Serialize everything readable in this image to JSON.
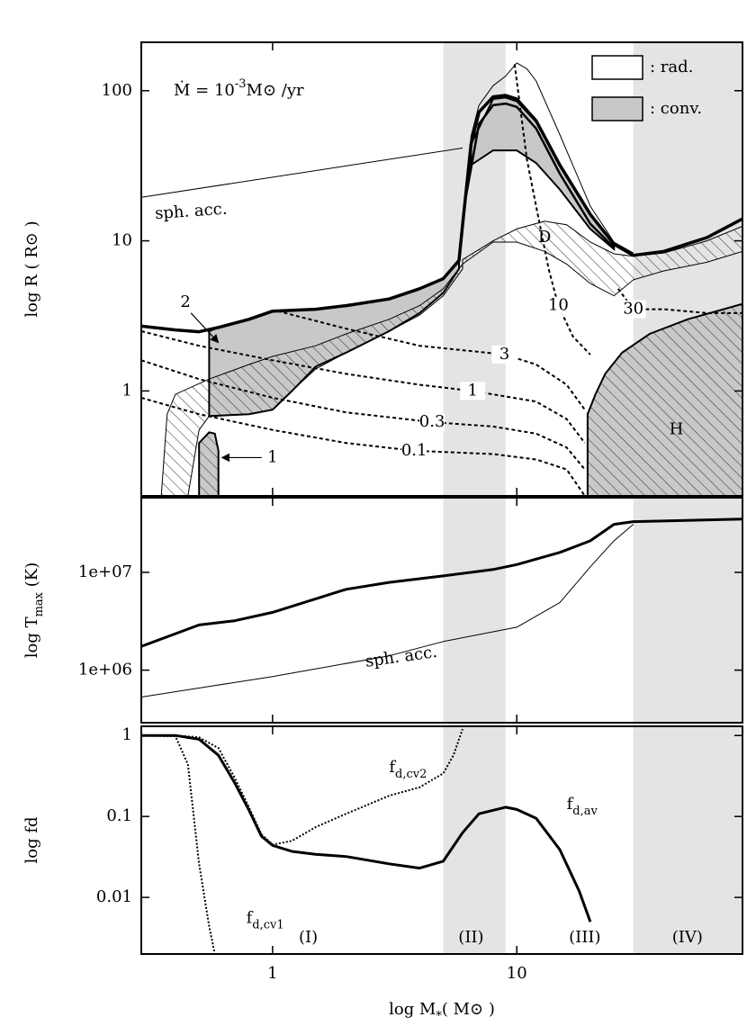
{
  "chart_data": [
    {
      "type": "line",
      "formula": {
        "lhs": "Ṁ = 10",
        "exp": "-3",
        "rhs": "M⊙ /yr"
      },
      "ylabel": "log R ( R⊙ )",
      "xlim": [
        0.29,
        84
      ],
      "xticks": [
        1,
        10
      ],
      "log_x": true,
      "ylim": [
        0.2,
        210
      ],
      "yticks": [
        1,
        10,
        100
      ],
      "log_y": true,
      "bands": [
        [
          5,
          9
        ],
        [
          30,
          84
        ]
      ],
      "band_color": "#e4e4e4",
      "legend": [
        {
          "label": ": rad.",
          "fill": "#ffffff"
        },
        {
          "label": ": conv.",
          "fill": "#c8c8c8"
        }
      ],
      "series": [
        {
          "x": [
            0.29,
            0.4,
            0.5,
            0.6,
            0.8,
            1,
            1.5,
            2,
            3,
            4,
            5,
            5.8,
            6,
            6.5,
            7,
            8,
            9,
            10,
            12,
            15,
            20,
            25,
            30,
            40,
            60,
            84
          ],
          "values": [
            2.7,
            2.55,
            2.48,
            2.65,
            3.0,
            3.4,
            3.5,
            3.7,
            4.1,
            4.8,
            5.6,
            7.4,
            12.8,
            44,
            72,
            91,
            93,
            88,
            63,
            32,
            15,
            9.5,
            8,
            8.5,
            10.5,
            14
          ],
          "color": "#000000",
          "width": 3.5
        },
        {
          "x": [
            6,
            6.5,
            7,
            8,
            9,
            10,
            11,
            12,
            15,
            20,
            25,
            30
          ],
          "values": [
            12.8,
            50,
            80,
            108,
            125,
            153,
            140,
            116,
            51,
            17,
            9.8,
            8.3
          ],
          "color": "#000000",
          "width": 1
        },
        {
          "x": [
            6.2,
            7,
            8,
            9,
            10,
            12,
            15,
            20,
            25
          ],
          "values": [
            20,
            60,
            80,
            82,
            78,
            56,
            28,
            13,
            9
          ],
          "color": "#000000",
          "width": 2.5
        },
        {
          "label": "sph. acc.",
          "x": [
            0.29,
            6
          ],
          "values": [
            19.5,
            41.5
          ],
          "color": "#000000",
          "width": 1
        }
      ],
      "regions": [
        {
          "x": [
            6.5,
            8,
            9,
            10,
            12,
            15,
            20,
            25,
            25,
            20,
            15,
            12,
            10,
            8,
            6.5
          ],
          "y": [
            44,
            88,
            90,
            85,
            62,
            32,
            15,
            9.5,
            8.8,
            12,
            22,
            33,
            40,
            40,
            32
          ],
          "fill": "#c8c8c8",
          "hatch": false,
          "stroke_width": 2
        },
        {
          "x": [
            0.55,
            0.6,
            0.8,
            1,
            1.5,
            2,
            3,
            4,
            5,
            5.8,
            5.8,
            5,
            4,
            3,
            2,
            1.5,
            1.2,
            1,
            0.8,
            0.55
          ],
          "y": [
            2.5,
            2.65,
            3.0,
            3.4,
            3.5,
            3.7,
            4.1,
            4.8,
            5.6,
            7.4,
            6.5,
            4.5,
            3.3,
            2.5,
            1.8,
            1.45,
            1.0,
            0.75,
            0.7,
            0.68
          ],
          "fill": "#c8c8c8",
          "hatch": false,
          "stroke_width": 2
        },
        {
          "x": [
            0.35,
            0.37,
            0.4,
            0.55,
            0.8,
            1,
            1.5,
            2,
            3,
            4,
            5,
            6,
            6,
            5,
            4,
            3,
            2,
            1.5,
            1.2,
            1,
            0.8,
            0.6,
            0.55,
            0.5,
            0.45
          ],
          "y": [
            0.2,
            0.7,
            0.95,
            1.2,
            1.5,
            1.7,
            2.0,
            2.4,
            3.0,
            3.7,
            4.8,
            7,
            6.5,
            4.3,
            3.2,
            2.5,
            1.8,
            1.4,
            1.0,
            0.75,
            0.7,
            0.68,
            0.68,
            0.55,
            0.2
          ],
          "fill": "none",
          "hatch": true,
          "stroke_width": 1
        },
        {
          "x": [
            6,
            8,
            10,
            13,
            16,
            20,
            25,
            30,
            40,
            60,
            84,
            84,
            60,
            40,
            30,
            25,
            20,
            16,
            13,
            10,
            8,
            6
          ],
          "y": [
            7.5,
            10,
            12,
            13.5,
            12.8,
            9.8,
            8.2,
            7.9,
            8.3,
            10,
            12.5,
            8.5,
            7.2,
            6.3,
            5.5,
            4.3,
            5.2,
            7,
            8.5,
            9.8,
            9.8,
            7
          ],
          "fill": "none",
          "hatch": true,
          "stroke_width": 1
        },
        {
          "x": [
            19.5,
            19.5,
            21,
            23,
            27,
            35,
            50,
            84,
            84
          ],
          "y": [
            0.2,
            0.7,
            0.95,
            1.3,
            1.8,
            2.4,
            3.0,
            3.8,
            0.2
          ],
          "fill": "#c8c8c8",
          "hatch": true,
          "stroke_width": 2
        },
        {
          "x": [
            0.5,
            0.5,
            0.55,
            0.58,
            0.6,
            0.6
          ],
          "y": [
            0.2,
            0.45,
            0.53,
            0.52,
            0.4,
            0.2
          ],
          "fill": "#c8c8c8",
          "hatch": true,
          "stroke_width": 2
        }
      ],
      "contours": [
        {
          "label": "0.1",
          "x": [
            0.29,
            0.5,
            1,
            2,
            3.8,
            8,
            12,
            16,
            19
          ],
          "values": [
            0.9,
            0.7,
            0.55,
            0.45,
            0.4,
            0.38,
            0.35,
            0.3,
            0.2
          ]
        },
        {
          "label": "0.3",
          "x": [
            0.29,
            0.5,
            1,
            2,
            4.5,
            8,
            12,
            16,
            19
          ],
          "values": [
            1.6,
            1.2,
            0.9,
            0.72,
            0.62,
            0.58,
            0.52,
            0.42,
            0.3
          ]
        },
        {
          "label": "1",
          "x": [
            0.29,
            0.5,
            1,
            2,
            4,
            6.6,
            12,
            16,
            19
          ],
          "values": [
            2.5,
            2.0,
            1.6,
            1.3,
            1.1,
            1.0,
            0.85,
            0.65,
            0.45
          ]
        },
        {
          "label": "3",
          "x": [
            1.05,
            2,
            4,
            8.9,
            12,
            16,
            19
          ],
          "values": [
            3.4,
            2.6,
            2.0,
            1.75,
            1.5,
            1.1,
            0.75
          ]
        },
        {
          "label": "10",
          "x": [
            9.8,
            10.3,
            11,
            12,
            13.5,
            14.8,
            17,
            20
          ],
          "values": [
            150,
            80,
            35,
            17,
            6.5,
            3.7,
            2.3,
            1.75
          ]
        },
        {
          "label": "30",
          "x": [
            26,
            30,
            40,
            60,
            84
          ],
          "values": [
            4.8,
            3.5,
            3.5,
            3.3,
            3.3
          ]
        }
      ],
      "annotations": [
        "D",
        "H",
        "2",
        "1"
      ]
    },
    {
      "type": "line",
      "ylabel": {
        "text": "log T",
        "sub": "max",
        "tail": " (K)"
      },
      "xlim": [
        0.29,
        84
      ],
      "xticks": [
        1,
        10
      ],
      "log_x": true,
      "ylim": [
        290000,
        58000000
      ],
      "yticks": [
        {
          "value": 1000000,
          "label": "1e+06"
        },
        {
          "value": 10000000,
          "label": "1e+07"
        }
      ],
      "log_y": true,
      "bands": [
        [
          5,
          9
        ],
        [
          30,
          84
        ]
      ],
      "band_color": "#e4e4e4",
      "series": [
        {
          "x": [
            0.29,
            0.5,
            0.7,
            1,
            2,
            3,
            5,
            8,
            10,
            15,
            20,
            25,
            30,
            84
          ],
          "values": [
            1750000,
            2900000,
            3200000,
            3900000,
            6700000,
            7900000,
            9200000,
            10700000,
            12000000,
            16000000,
            21000000,
            31000000,
            33000000,
            35000000
          ],
          "color": "#000000",
          "width": 3
        },
        {
          "label": "sph. acc.",
          "x": [
            0.29,
            1,
            3,
            5,
            10,
            15,
            20,
            25,
            30
          ],
          "values": [
            530000,
            860000,
            1400000,
            1960000,
            2750000,
            4900000,
            11400000,
            21000000,
            31000000
          ],
          "color": "#000000",
          "width": 1
        }
      ]
    },
    {
      "type": "line",
      "ylabel": "log fd",
      "xlabel": {
        "text": "log M",
        "sub": "*",
        "tail": "( M⊙ )"
      },
      "xlim": [
        0.29,
        84
      ],
      "xticks": [
        1,
        10
      ],
      "log_x": true,
      "ylim": [
        0.002,
        1.3
      ],
      "yticks": [
        0.01,
        0.1,
        1
      ],
      "log_y": true,
      "bands": [
        [
          5,
          9
        ],
        [
          30,
          84
        ]
      ],
      "band_color": "#e4e4e4",
      "phase_labels": [
        "(I)",
        "(II)",
        "(III)",
        "(IV)"
      ],
      "series": [
        {
          "label": {
            "text": "f",
            "sub": "d,av"
          },
          "x": [
            0.29,
            0.4,
            0.5,
            0.6,
            0.7,
            0.8,
            0.9,
            1,
            1.2,
            1.5,
            2,
            3,
            4,
            5,
            6,
            7,
            9,
            10,
            12,
            15,
            18,
            20
          ],
          "values": [
            1,
            1,
            0.9,
            0.57,
            0.26,
            0.12,
            0.057,
            0.044,
            0.037,
            0.034,
            0.032,
            0.026,
            0.023,
            0.028,
            0.063,
            0.108,
            0.13,
            0.122,
            0.095,
            0.039,
            0.012,
            0.005
          ],
          "color": "#000000",
          "width": 3
        },
        {
          "label": {
            "text": "f",
            "sub": "d,cv2"
          },
          "x": [
            0.29,
            0.4,
            0.5,
            0.6,
            0.7,
            0.8,
            0.9,
            1,
            1.2,
            1.5,
            2,
            3,
            4,
            5,
            5.5,
            6
          ],
          "values": [
            1,
            1,
            0.95,
            0.7,
            0.3,
            0.13,
            0.06,
            0.045,
            0.05,
            0.074,
            0.108,
            0.18,
            0.23,
            0.34,
            0.57,
            1.2
          ],
          "color": "#000000",
          "width": 2,
          "dash": "dotted"
        },
        {
          "label": {
            "text": "f",
            "sub": "d,cv1"
          },
          "x": [
            0.29,
            0.4,
            0.45,
            0.5,
            0.55,
            0.58
          ],
          "values": [
            1,
            0.98,
            0.44,
            0.026,
            0.0044,
            0.002
          ],
          "color": "#000000",
          "width": 2,
          "dash": "dotted"
        }
      ]
    }
  ]
}
